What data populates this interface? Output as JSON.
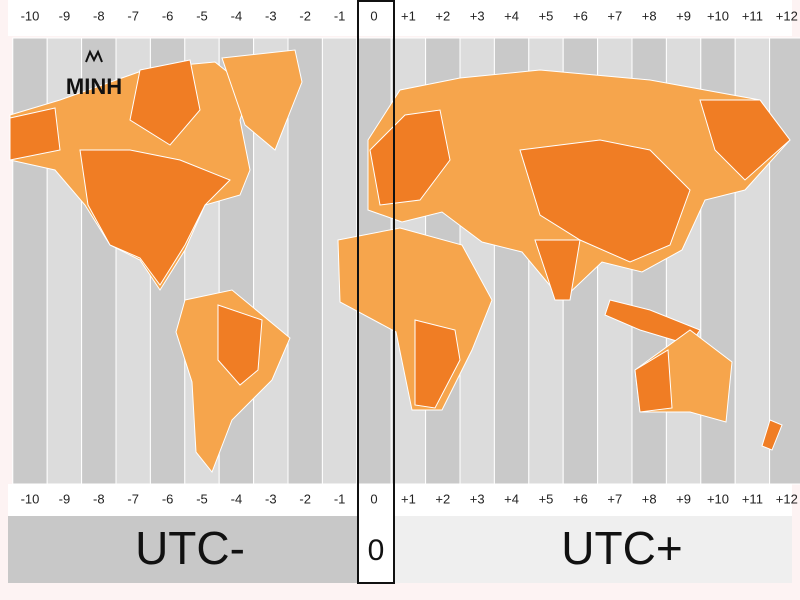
{
  "logo": "MINH",
  "zones": [
    "-10",
    "-9",
    "-8",
    "-7",
    "-6",
    "-5",
    "-4",
    "-3",
    "-2",
    "-1",
    "0",
    "+1",
    "+2",
    "+3",
    "+4",
    "+5",
    "+6",
    "+7",
    "+8",
    "+9",
    "+10",
    "+11",
    "+12"
  ],
  "footer": {
    "left": "UTC-",
    "center": "0",
    "right": "UTC+"
  }
}
